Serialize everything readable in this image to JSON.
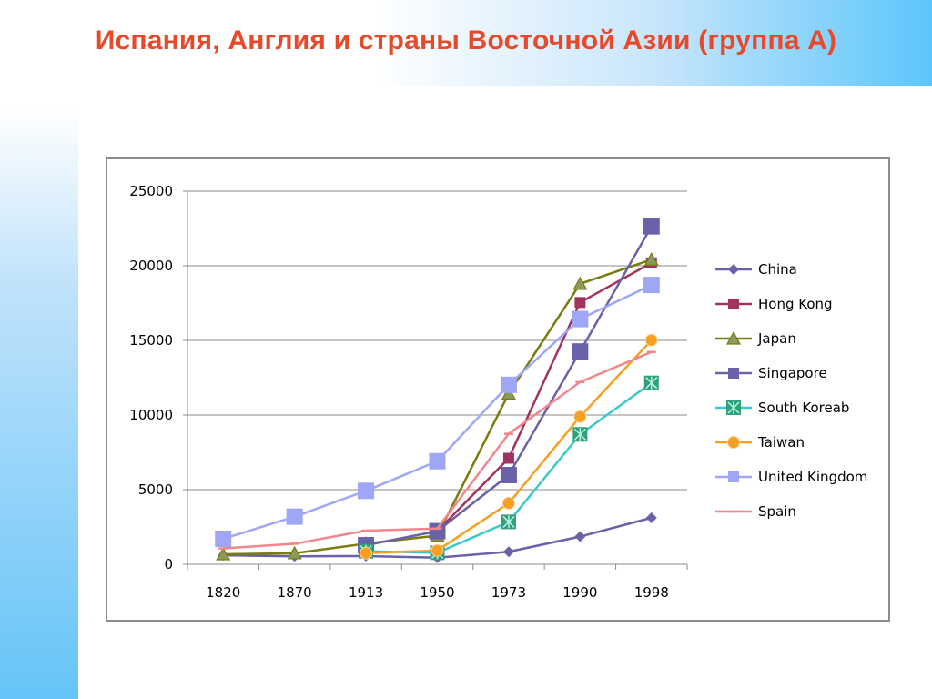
{
  "slide": {
    "title": "Испания, Англия и страны Восточной Азии (группа А)",
    "title_color": "#e8492a"
  },
  "chart_data": {
    "type": "line",
    "title": "",
    "xlabel": "",
    "ylabel": "",
    "categories": [
      "1820",
      "1870",
      "1913",
      "1950",
      "1973",
      "1990",
      "1998"
    ],
    "ylim": [
      0,
      25000
    ],
    "yticks": [
      0,
      5000,
      10000,
      15000,
      20000,
      25000
    ],
    "grid": "horizontal",
    "legend_position": "right",
    "series": [
      {
        "name": "China",
        "color": "#6a62a8",
        "marker": "diamond",
        "values": [
          600,
          530,
          552,
          439,
          839,
          1858,
          3117
        ]
      },
      {
        "name": "Hong Kong",
        "color": "#a2325e",
        "marker": "square",
        "values": [
          null,
          null,
          null,
          2218,
          7104,
          17541,
          20193
        ]
      },
      {
        "name": "Japan",
        "color": "#7a7c10",
        "marker": "triangle",
        "values": [
          669,
          737,
          1387,
          1921,
          11434,
          18789,
          20413
        ]
      },
      {
        "name": "Singapore",
        "color": "#6a62a8",
        "marker": "bigsquare",
        "values": [
          null,
          null,
          1279,
          2219,
          5977,
          14258,
          22643
        ]
      },
      {
        "name": "South Koreab",
        "color": "#3ac9c9",
        "marker": "star",
        "values": [
          null,
          null,
          869,
          770,
          2841,
          8704,
          12152
        ]
      },
      {
        "name": "Taiwan",
        "color": "#f6a022",
        "marker": "circle",
        "values": [
          null,
          null,
          747,
          924,
          4091,
          9886,
          15012
        ]
      },
      {
        "name": "United Kingdom",
        "color": "#9fa6f6",
        "marker": "bigsquare",
        "values": [
          1706,
          3190,
          4921,
          6907,
          12022,
          16430,
          18714
        ]
      },
      {
        "name": "Spain",
        "color": "#f2868a",
        "marker": "dash",
        "values": [
          1063,
          1376,
          2255,
          2397,
          8739,
          12210,
          14227
        ]
      }
    ]
  }
}
